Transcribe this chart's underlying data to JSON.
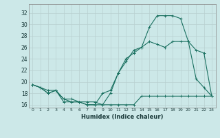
{
  "xlabel": "Humidex (Indice chaleur)",
  "xlim": [
    -0.5,
    23.5
  ],
  "ylim": [
    15.5,
    33.5
  ],
  "xticks": [
    0,
    1,
    2,
    3,
    4,
    5,
    6,
    7,
    8,
    9,
    10,
    11,
    12,
    13,
    14,
    15,
    16,
    17,
    18,
    19,
    20,
    21,
    22,
    23
  ],
  "yticks": [
    16,
    18,
    20,
    22,
    24,
    26,
    28,
    30,
    32
  ],
  "bg_color": "#cce8e8",
  "grid_color": "#b8d0d0",
  "line_color": "#1a7060",
  "line1_x": [
    0,
    1,
    2,
    3,
    4,
    5,
    6,
    7,
    8,
    9,
    10,
    11,
    12,
    13,
    14,
    15,
    16,
    17,
    18,
    19,
    20,
    21,
    22,
    23
  ],
  "line1_y": [
    19.5,
    19.0,
    18.0,
    18.5,
    17.0,
    16.5,
    16.5,
    16.0,
    16.0,
    16.0,
    16.0,
    16.0,
    16.0,
    16.0,
    17.5,
    17.5,
    17.5,
    17.5,
    17.5,
    17.5,
    17.5,
    17.5,
    17.5,
    17.5
  ],
  "line2_x": [
    0,
    1,
    2,
    3,
    4,
    5,
    6,
    7,
    8,
    9,
    10,
    11,
    12,
    13,
    14,
    15,
    16,
    17,
    18,
    19,
    20,
    21,
    22,
    23
  ],
  "line2_y": [
    19.5,
    19.0,
    18.0,
    18.5,
    16.5,
    16.5,
    16.5,
    16.0,
    16.0,
    18.0,
    18.5,
    21.5,
    23.5,
    25.5,
    26.0,
    29.5,
    31.5,
    31.5,
    31.5,
    31.0,
    27.0,
    20.5,
    19.0,
    17.5
  ],
  "line3_x": [
    0,
    1,
    2,
    3,
    4,
    5,
    6,
    7,
    8,
    9,
    10,
    11,
    12,
    13,
    14,
    15,
    16,
    17,
    18,
    19,
    20,
    21,
    22,
    23
  ],
  "line3_y": [
    19.5,
    19.0,
    18.5,
    18.5,
    17.0,
    17.0,
    16.5,
    16.5,
    16.5,
    16.0,
    18.0,
    21.5,
    24.0,
    25.0,
    26.0,
    27.0,
    26.5,
    26.0,
    27.0,
    27.0,
    27.0,
    25.5,
    25.0,
    17.5
  ]
}
